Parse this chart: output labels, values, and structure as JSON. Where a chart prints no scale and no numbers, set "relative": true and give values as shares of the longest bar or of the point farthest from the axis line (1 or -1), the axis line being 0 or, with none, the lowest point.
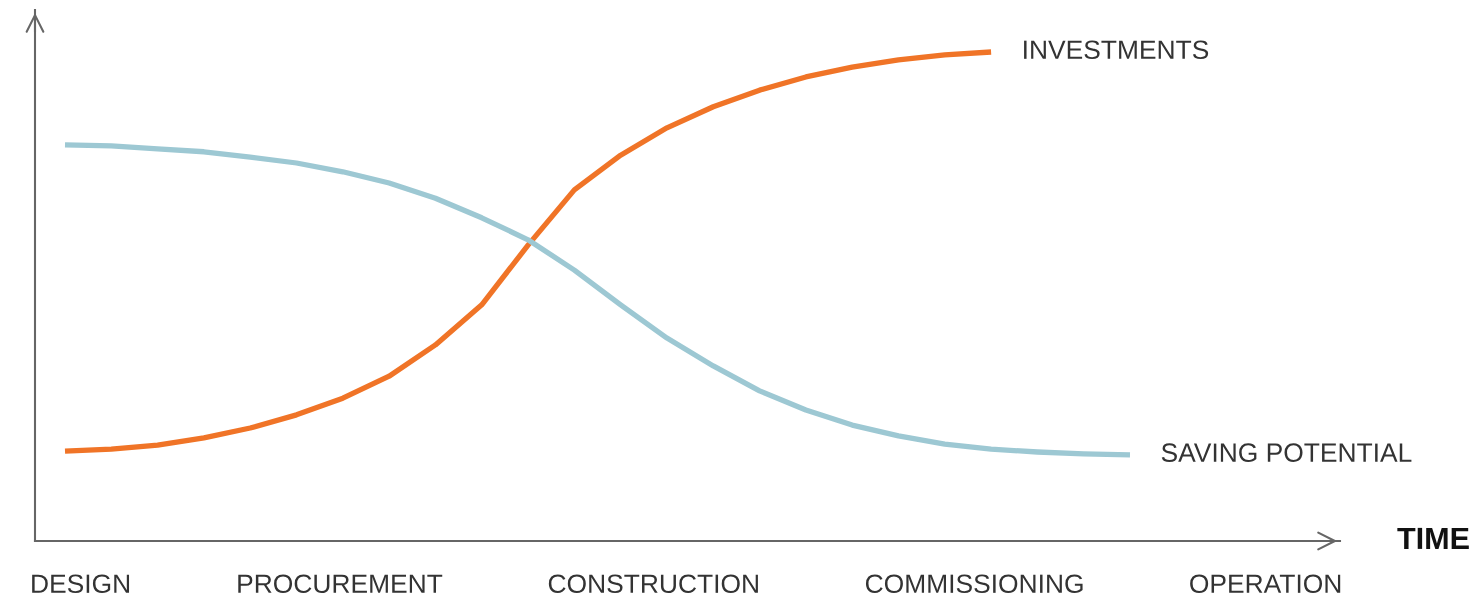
{
  "chart_data": {
    "type": "line",
    "relative": true,
    "categories": [
      null,
      null,
      null,
      null,
      null,
      null,
      null,
      null,
      null,
      null,
      null,
      null,
      null,
      null,
      null,
      null,
      null,
      null,
      null,
      null,
      null,
      null,
      null,
      null
    ],
    "series": [
      {
        "name": "INVESTMENTS",
        "color": "#f07427",
        "values": [
          0.184,
          0.188,
          0.196,
          0.211,
          0.231,
          0.258,
          0.292,
          0.337,
          0.401,
          0.483,
          0.605,
          0.718,
          0.789,
          0.845,
          0.888,
          0.922,
          0.949,
          0.969,
          0.984,
          0.994,
          1.0,
          null,
          null,
          null
        ]
      },
      {
        "name": "SAVING POTENTIAL",
        "color": "#9dc8d3",
        "values": [
          0.81,
          0.808,
          0.802,
          0.796,
          0.785,
          0.773,
          0.755,
          0.732,
          0.701,
          0.661,
          0.616,
          0.554,
          0.483,
          0.415,
          0.358,
          0.307,
          0.268,
          0.237,
          0.215,
          0.198,
          0.188,
          0.182,
          0.178,
          0.176
        ]
      }
    ],
    "annotations": [
      "TIME",
      "DESIGN",
      "PROCUREMENT",
      "CONSTRUCTION",
      "COMMISSIONING",
      "OPERATION"
    ]
  }
}
